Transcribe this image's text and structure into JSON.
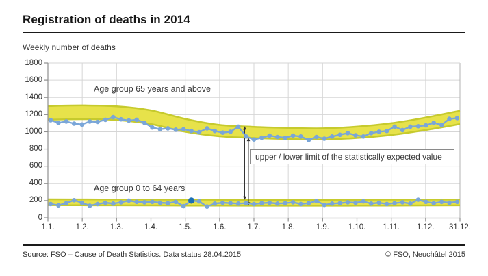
{
  "header": {
    "title": "Registration of deaths in 2014"
  },
  "chart": {
    "subtitle": "Weekly number of deaths"
  },
  "chart_data": {
    "type": "line",
    "title": "Registration of deaths in 2014",
    "ylabel": "Weekly number of deaths",
    "xlabel": "",
    "ylim": [
      0,
      1800
    ],
    "y_ticks": [
      0,
      200,
      400,
      600,
      800,
      1000,
      1200,
      1400,
      1600,
      1800
    ],
    "x_tick_labels": [
      "1.1.",
      "1.2.",
      "1.3.",
      "1.4.",
      "1.5.",
      "1.6.",
      "1.7.",
      "1.8.",
      "1.9.",
      "1.10.",
      "1.11.",
      "1.12.",
      "31.12."
    ],
    "grid": true,
    "annotation": "upper / lower limit of the statistically expected value",
    "series": [
      {
        "name": "Age group 65 years and above",
        "values": [
          1135,
          1105,
          1120,
          1095,
          1085,
          1120,
          1115,
          1140,
          1170,
          1145,
          1130,
          1140,
          1105,
          1050,
          1030,
          1040,
          1025,
          1030,
          1010,
          995,
          1040,
          1010,
          990,
          1000,
          1060,
          945,
          910,
          930,
          955,
          940,
          930,
          955,
          945,
          905,
          940,
          920,
          945,
          965,
          985,
          960,
          945,
          985,
          1000,
          1010,
          1060,
          1020,
          1060,
          1065,
          1075,
          1105,
          1080,
          1150,
          1160
        ]
      },
      {
        "name": "Age group 0 to 64 years",
        "values": [
          160,
          145,
          170,
          205,
          175,
          140,
          160,
          175,
          165,
          180,
          200,
          185,
          180,
          185,
          175,
          170,
          185,
          135,
          200,
          190,
          130,
          165,
          175,
          170,
          165,
          170,
          160,
          170,
          175,
          165,
          170,
          180,
          160,
          170,
          195,
          150,
          165,
          170,
          180,
          175,
          190,
          165,
          175,
          160,
          170,
          180,
          165,
          210,
          185,
          170,
          185,
          175,
          185
        ],
        "highlight_index": 18
      }
    ],
    "bands": [
      {
        "name": "expected range 65 years and above",
        "upper": [
          1300,
          1307,
          1297,
          1250,
          1150,
          1080,
          1058,
          1045,
          1040,
          1060,
          1100,
          1165,
          1245
        ],
        "lower": [
          1140,
          1147,
          1137,
          1090,
          1000,
          948,
          928,
          915,
          910,
          928,
          963,
          1020,
          1090
        ]
      },
      {
        "name": "expected range 0 to 64 years",
        "upper": [
          215,
          214,
          213,
          212,
          211,
          210,
          209,
          209,
          209,
          210,
          211,
          212,
          213
        ],
        "lower": [
          146,
          145,
          144,
          143,
          142,
          141,
          140,
          140,
          140,
          141,
          142,
          143,
          144
        ]
      }
    ],
    "colors": {
      "band_fill": "#e7e24a",
      "band_edge": "#c6ca2d",
      "line": "#7aa6d8",
      "highlight_point": "#1c70b5",
      "grid": "#d6d6d6",
      "axis": "#8f8f8f",
      "arrow": "#333333"
    },
    "legend_position": "inline-labels"
  },
  "footer": {
    "source": "Source: FSO – Cause of Death Statistics. Data status 28.04.2015",
    "copyright": "© FSO, Neuchâtel 2015"
  }
}
